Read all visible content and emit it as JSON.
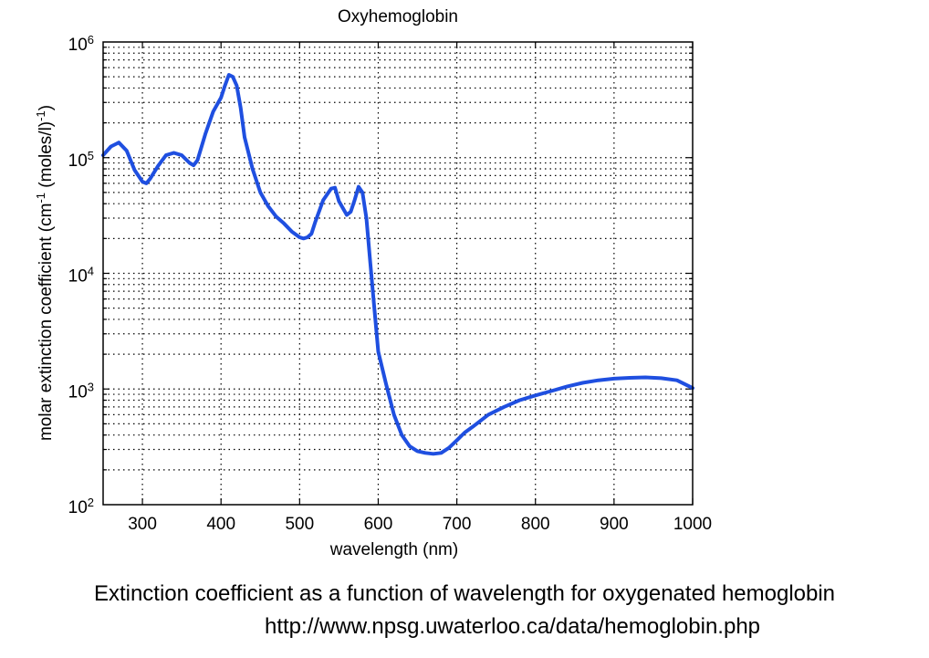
{
  "chart_data": {
    "type": "line",
    "title": "Oxyhemoglobin",
    "xlabel": "wavelength (nm)",
    "ylabel": "molar extinction coefficient (cm",
    "ylabel_sup1": "-1",
    "ylabel_mid": " (moles/l)",
    "ylabel_sup2": "-1",
    "ylabel_end": ")",
    "xlim": [
      250,
      1000
    ],
    "ylim": [
      100,
      1000000
    ],
    "yscale": "log",
    "grid": true,
    "x_ticks": [
      300,
      400,
      500,
      600,
      700,
      800,
      900,
      1000
    ],
    "x_tick_labels": [
      "300",
      "400",
      "500",
      "600",
      "700",
      "800",
      "900",
      "1000"
    ],
    "y_tick_base": "10",
    "y_tick_exponents": [
      "2",
      "3",
      "4",
      "5",
      "6"
    ],
    "line_color": "#1f4fe0",
    "series": [
      {
        "x": [
          250,
          260,
          270,
          280,
          290,
          300,
          305,
          310,
          320,
          330,
          340,
          350,
          360,
          365,
          370,
          380,
          390,
          400,
          405,
          410,
          415,
          420,
          425,
          430,
          440,
          450,
          460,
          470,
          480,
          490,
          500,
          505,
          510,
          515,
          520,
          530,
          540,
          545,
          550,
          560,
          565,
          570,
          575,
          580,
          585,
          590,
          595,
          600,
          610,
          620,
          630,
          640,
          650,
          660,
          670,
          680,
          690,
          700,
          710,
          720,
          740,
          760,
          780,
          800,
          820,
          840,
          860,
          880,
          900,
          920,
          940,
          960,
          980,
          1000
        ],
        "y": [
          105000,
          125000,
          135000,
          115000,
          78000,
          62000,
          60000,
          66000,
          85000,
          105000,
          110000,
          105000,
          90000,
          86000,
          95000,
          160000,
          250000,
          330000,
          420000,
          520000,
          500000,
          420000,
          270000,
          150000,
          80000,
          50000,
          38000,
          31000,
          27000,
          23000,
          20500,
          20000,
          20500,
          22000,
          28000,
          43000,
          54000,
          55000,
          42000,
          32000,
          34000,
          43000,
          56000,
          50000,
          30000,
          12000,
          5000,
          2100,
          1100,
          600,
          400,
          320,
          290,
          280,
          275,
          280,
          310,
          360,
          420,
          470,
          600,
          700,
          800,
          880,
          960,
          1050,
          1130,
          1190,
          1230,
          1250,
          1260,
          1240,
          1190,
          1020
        ]
      }
    ]
  },
  "caption": {
    "line1": "Extinction coefficient as a function of wavelength for oxygenated hemoglobin",
    "line2": "http://www.npsg.uwaterloo.ca/data/hemoglobin.php"
  }
}
